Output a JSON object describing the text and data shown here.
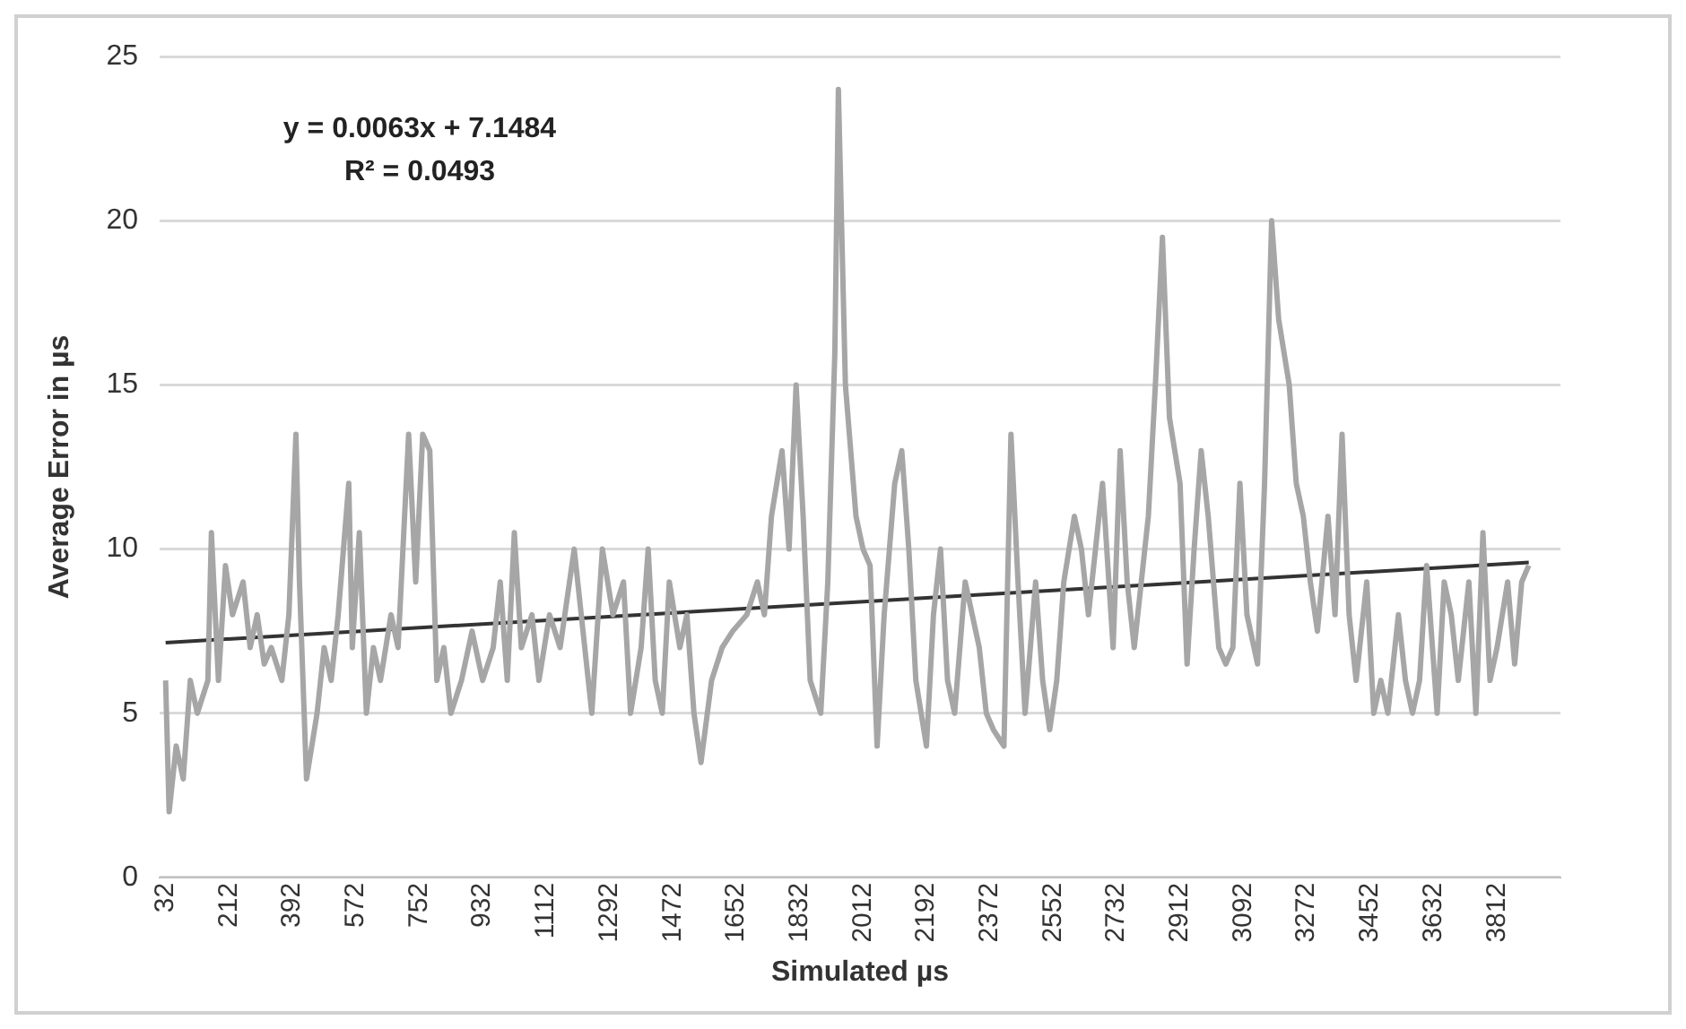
{
  "chart_data": {
    "type": "line",
    "xlabel": "Simulated µs",
    "ylabel": "Average Error in µs",
    "annotations": [
      "y = 0.0063x + 7.1484",
      "R² = 0.0493"
    ],
    "xlim": [
      15,
      3992
    ],
    "xticks": [
      32,
      212,
      392,
      572,
      752,
      932,
      1112,
      1292,
      1472,
      1652,
      1832,
      2012,
      2192,
      2372,
      2552,
      2732,
      2912,
      3092,
      3272,
      3452,
      3632,
      3812
    ],
    "ylim": [
      0,
      25
    ],
    "yticks": [
      0,
      5,
      10,
      15,
      20,
      25
    ],
    "grid": "y",
    "legend": false,
    "marker": "none",
    "series": [
      {
        "color": "#a6a6a6",
        "x": [
          32,
          42,
          62,
          82,
          102,
          122,
          152,
          162,
          182,
          202,
          222,
          252,
          272,
          292,
          312,
          332,
          362,
          382,
          402,
          412,
          432,
          462,
          482,
          502,
          522,
          552,
          562,
          582,
          602,
          622,
          642,
          672,
          692,
          722,
          742,
          762,
          782,
          802,
          822,
          842,
          872,
          902,
          932,
          962,
          982,
          1002,
          1022,
          1042,
          1072,
          1092,
          1122,
          1152,
          1192,
          1222,
          1242,
          1272,
          1302,
          1332,
          1352,
          1382,
          1402,
          1422,
          1442,
          1462,
          1492,
          1512,
          1532,
          1552,
          1582,
          1612,
          1642,
          1682,
          1712,
          1732,
          1752,
          1782,
          1802,
          1822,
          1842,
          1862,
          1892,
          1912,
          1932,
          1942,
          1962,
          1992,
          2012,
          2032,
          2052,
          2072,
          2102,
          2122,
          2142,
          2162,
          2192,
          2212,
          2232,
          2252,
          2272,
          2302,
          2322,
          2342,
          2362,
          2382,
          2412,
          2432,
          2452,
          2472,
          2502,
          2522,
          2542,
          2562,
          2582,
          2612,
          2632,
          2652,
          2672,
          2692,
          2722,
          2742,
          2762,
          2782,
          2822,
          2842,
          2862,
          2882,
          2912,
          2932,
          2952,
          2972,
          2992,
          3022,
          3042,
          3062,
          3082,
          3102,
          3132,
          3152,
          3172,
          3192,
          3222,
          3242,
          3262,
          3282,
          3302,
          3332,
          3352,
          3372,
          3392,
          3412,
          3442,
          3462,
          3482,
          3502,
          3532,
          3552,
          3572,
          3592,
          3612,
          3642,
          3662,
          3682,
          3702,
          3732,
          3752,
          3772,
          3792,
          3812,
          3842,
          3862,
          3882,
          3902
        ],
        "values": [
          6,
          2,
          4,
          3,
          6,
          5,
          6,
          10.5,
          6,
          9.5,
          8,
          9,
          7,
          8,
          6.5,
          7,
          6,
          8,
          13.5,
          9,
          3,
          5,
          7,
          6,
          8,
          12,
          7,
          10.5,
          5,
          7,
          6,
          8,
          7,
          13.5,
          9,
          13.5,
          13,
          6,
          7,
          5,
          6,
          7.5,
          6,
          7,
          9,
          6,
          10.5,
          7,
          8,
          6,
          8,
          7,
          10,
          7,
          5,
          10,
          8,
          9,
          5,
          7,
          10,
          6,
          5,
          9,
          7,
          8,
          5,
          3.5,
          6,
          7,
          7.5,
          8,
          9,
          8,
          11,
          13,
          10,
          15,
          11,
          6,
          5,
          9,
          16,
          24,
          15,
          11,
          10,
          9.5,
          4,
          8,
          12,
          13,
          10,
          6,
          4,
          8,
          10,
          6,
          5,
          9,
          8,
          7,
          5,
          4.5,
          4,
          13.5,
          9,
          5,
          9,
          6,
          4.5,
          6,
          9,
          11,
          10,
          8,
          10,
          12,
          7,
          13,
          9,
          7,
          11,
          15,
          19.5,
          14,
          12,
          6.5,
          10,
          13,
          11,
          7,
          6.5,
          7,
          12,
          8,
          6.5,
          12,
          20,
          17,
          15,
          12,
          11,
          9,
          7.5,
          11,
          8,
          13.5,
          8,
          6,
          9,
          5,
          6,
          5,
          8,
          6,
          5,
          6,
          9.5,
          5,
          9,
          8,
          6,
          9,
          5,
          10.5,
          6,
          7,
          9,
          6.5,
          9,
          9.5
        ]
      },
      {
        "type": "line",
        "color": "#333333",
        "x": [
          32,
          3902
        ],
        "values": [
          7.15,
          9.59
        ]
      }
    ]
  }
}
